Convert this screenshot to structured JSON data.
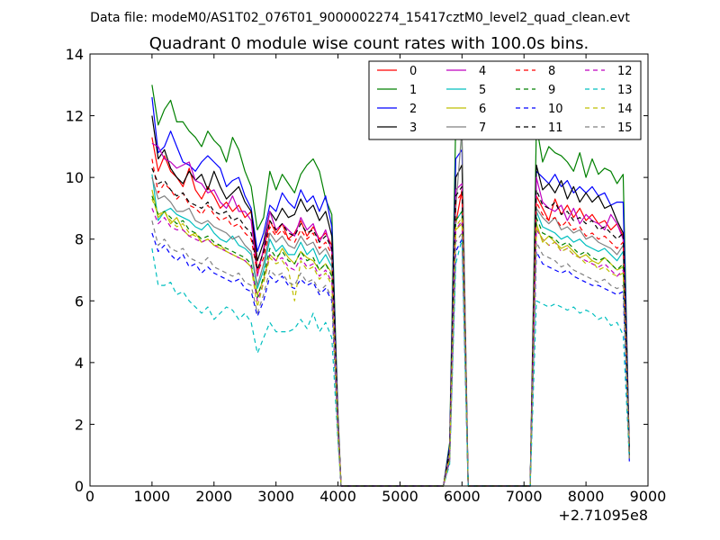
{
  "figure": {
    "suptitle": "Data file: modeM0/AS1T02_076T01_9000002274_15417cztM0_level2_quad_clean.evt"
  },
  "chart_data": {
    "type": "line",
    "title": "Quadrant 0 module wise count rates with 100.0s bins.",
    "xlabel": "",
    "ylabel": "",
    "x_offset_label": "+2.71095e8",
    "xlim": [
      0,
      9000
    ],
    "ylim": [
      0,
      14
    ],
    "xticks": [
      0,
      1000,
      2000,
      3000,
      4000,
      5000,
      6000,
      7000,
      8000,
      9000
    ],
    "yticks": [
      0,
      2,
      4,
      6,
      8,
      10,
      12,
      14
    ],
    "legend_position": "upper-right",
    "legend_columns": 4,
    "x": [
      1000,
      1100,
      1200,
      1300,
      1400,
      1500,
      1600,
      1700,
      1800,
      1900,
      2000,
      2100,
      2200,
      2300,
      2400,
      2500,
      2600,
      2700,
      2800,
      2900,
      3000,
      3100,
      3200,
      3300,
      3400,
      3500,
      3600,
      3700,
      3800,
      3900,
      4000,
      4050,
      4100,
      5700,
      5800,
      5900,
      6000,
      6100,
      6200,
      7100,
      7200,
      7300,
      7400,
      7500,
      7600,
      7700,
      7800,
      7900,
      8000,
      8100,
      8200,
      8300,
      8400,
      8500,
      8600,
      8700
    ],
    "series": [
      {
        "name": "0",
        "color": "#ff0000",
        "dash": "solid",
        "values": [
          11.3,
          10.2,
          10.7,
          10.2,
          10.0,
          9.7,
          10.3,
          9.6,
          9.3,
          9.7,
          9.4,
          9.0,
          9.2,
          8.9,
          9.1,
          8.7,
          8.9,
          7.0,
          7.6,
          8.6,
          8.2,
          8.5,
          8.0,
          8.2,
          8.6,
          8.1,
          8.4,
          8.0,
          8.2,
          7.8,
          2.0,
          0,
          0,
          0,
          1.0,
          8.5,
          9.6,
          0,
          0,
          0,
          9.4,
          9.0,
          8.6,
          9.3,
          8.8,
          9.1,
          8.7,
          9.0,
          8.6,
          8.8,
          8.5,
          8.6,
          8.3,
          8.5,
          8.1,
          1.0
        ]
      },
      {
        "name": "1",
        "color": "#008000",
        "dash": "solid",
        "values": [
          13.0,
          11.7,
          12.2,
          12.5,
          11.8,
          11.8,
          11.5,
          11.3,
          11.0,
          11.5,
          11.2,
          11.0,
          10.5,
          11.3,
          10.9,
          10.2,
          9.7,
          8.3,
          8.7,
          10.2,
          9.6,
          10.1,
          9.8,
          9.5,
          10.1,
          10.4,
          10.6,
          10.2,
          9.3,
          8.8,
          2.3,
          0,
          0,
          0,
          1.4,
          11.8,
          11.2,
          0,
          0,
          0,
          11.7,
          10.5,
          11.0,
          10.8,
          10.7,
          10.5,
          10.2,
          10.8,
          10.0,
          10.6,
          10.1,
          10.3,
          10.2,
          9.8,
          10.1,
          1.1
        ]
      },
      {
        "name": "2",
        "color": "#0000ff",
        "dash": "solid",
        "values": [
          12.6,
          10.8,
          11.0,
          11.5,
          11.0,
          10.5,
          10.4,
          10.2,
          10.5,
          10.7,
          10.5,
          10.3,
          9.7,
          9.9,
          10.0,
          9.4,
          9.0,
          7.6,
          8.2,
          9.1,
          8.9,
          9.5,
          9.2,
          9.0,
          9.6,
          9.2,
          9.4,
          8.9,
          9.4,
          8.4,
          2.1,
          0,
          0,
          0,
          1.3,
          10.6,
          10.9,
          0,
          0,
          0,
          10.2,
          10.0,
          9.8,
          10.1,
          9.7,
          9.9,
          9.5,
          9.7,
          9.5,
          9.7,
          9.4,
          9.5,
          9.1,
          9.2,
          9.2,
          1.2
        ]
      },
      {
        "name": "3",
        "color": "#000000",
        "dash": "solid",
        "values": [
          12.0,
          10.6,
          10.9,
          10.3,
          10.0,
          9.8,
          10.2,
          9.9,
          10.1,
          9.6,
          10.2,
          9.7,
          9.3,
          9.5,
          9.7,
          9.2,
          8.9,
          7.3,
          7.9,
          8.9,
          8.6,
          9.0,
          8.7,
          8.8,
          9.3,
          8.9,
          9.1,
          8.6,
          8.9,
          8.1,
          2.0,
          0,
          0,
          0,
          1.2,
          10.0,
          10.4,
          0,
          0,
          0,
          10.4,
          9.6,
          9.8,
          9.5,
          9.9,
          9.3,
          9.7,
          9.2,
          9.5,
          9.2,
          9.4,
          9.0,
          9.1,
          8.6,
          8.2,
          1.2
        ]
      },
      {
        "name": "4",
        "color": "#bf00bf",
        "dash": "solid",
        "values": [
          11.1,
          11.0,
          10.6,
          10.5,
          10.3,
          10.4,
          10.5,
          9.9,
          9.8,
          9.5,
          9.6,
          9.2,
          9.0,
          9.4,
          8.9,
          8.9,
          8.6,
          6.8,
          7.7,
          8.9,
          8.3,
          8.5,
          8.3,
          8.1,
          8.7,
          8.3,
          8.5,
          7.9,
          8.3,
          7.6,
          2.0,
          0,
          0,
          0,
          1.1,
          9.6,
          9.8,
          0,
          0,
          0,
          10.0,
          9.2,
          9.0,
          8.9,
          9.1,
          8.6,
          9.0,
          8.5,
          8.8,
          8.6,
          8.5,
          8.3,
          8.8,
          8.5,
          8.0,
          1.0
        ]
      },
      {
        "name": "5",
        "color": "#00bfbf",
        "dash": "solid",
        "values": [
          10.1,
          8.6,
          8.9,
          9.0,
          8.8,
          8.7,
          8.6,
          8.4,
          8.3,
          8.5,
          8.2,
          8.0,
          7.9,
          8.1,
          7.8,
          7.7,
          7.5,
          6.4,
          7.0,
          8.0,
          7.6,
          7.8,
          7.5,
          7.5,
          7.9,
          7.5,
          7.7,
          7.2,
          7.5,
          7.1,
          1.9,
          0,
          0,
          0,
          1.0,
          8.6,
          8.9,
          0,
          0,
          0,
          8.9,
          8.4,
          8.3,
          8.2,
          8.0,
          8.1,
          7.9,
          8.0,
          7.8,
          7.7,
          7.6,
          7.7,
          7.5,
          7.3,
          7.6,
          1.0
        ]
      },
      {
        "name": "6",
        "color": "#bfbf00",
        "dash": "solid",
        "values": [
          9.6,
          8.7,
          8.9,
          8.5,
          8.7,
          8.3,
          8.1,
          8.2,
          7.9,
          8.0,
          7.8,
          7.8,
          7.6,
          7.5,
          7.4,
          7.3,
          7.1,
          6.2,
          6.7,
          7.5,
          7.3,
          7.7,
          7.4,
          7.2,
          7.6,
          7.4,
          7.3,
          7.0,
          7.2,
          6.9,
          1.8,
          0,
          0,
          0,
          0.9,
          8.3,
          8.5,
          0,
          0,
          0,
          8.5,
          7.9,
          8.1,
          7.9,
          7.7,
          7.8,
          7.6,
          7.4,
          7.5,
          7.3,
          7.2,
          7.4,
          7.2,
          7.0,
          7.1,
          0.9
        ]
      },
      {
        "name": "7",
        "color": "#808080",
        "dash": "solid",
        "values": [
          10.0,
          9.3,
          9.4,
          9.2,
          8.9,
          8.9,
          9.0,
          8.6,
          8.5,
          8.6,
          8.4,
          8.3,
          8.2,
          8.0,
          8.1,
          7.8,
          7.6,
          6.5,
          7.2,
          8.2,
          7.9,
          8.1,
          7.8,
          7.7,
          8.1,
          7.8,
          7.9,
          7.5,
          7.7,
          7.3,
          1.9,
          0,
          0,
          0,
          1.1,
          9.0,
          11.6,
          0,
          0,
          0,
          9.0,
          8.7,
          8.5,
          8.7,
          8.3,
          8.4,
          8.2,
          8.3,
          8.0,
          8.1,
          7.9,
          7.8,
          7.7,
          7.5,
          7.8,
          1.0
        ]
      },
      {
        "name": "8",
        "color": "#ff0000",
        "dash": "dashed",
        "values": [
          10.6,
          9.5,
          9.8,
          9.6,
          9.3,
          9.5,
          9.1,
          9.0,
          8.8,
          9.1,
          8.8,
          8.6,
          8.7,
          8.4,
          8.5,
          8.2,
          8.0,
          6.9,
          7.4,
          8.4,
          8.1,
          8.3,
          8.0,
          7.9,
          8.3,
          8.0,
          8.2,
          7.7,
          7.9,
          7.5,
          1.9,
          0,
          0,
          0,
          1.0,
          9.2,
          9.5,
          0,
          0,
          0,
          9.2,
          8.8,
          8.6,
          8.7,
          8.4,
          8.6,
          8.3,
          8.4,
          8.1,
          8.2,
          8.0,
          8.1,
          7.9,
          7.7,
          7.9,
          1.0
        ]
      },
      {
        "name": "9",
        "color": "#008000",
        "dash": "dashed",
        "values": [
          9.4,
          8.8,
          8.9,
          8.7,
          8.5,
          8.6,
          8.3,
          8.2,
          8.0,
          8.1,
          7.9,
          7.8,
          7.7,
          7.6,
          7.5,
          7.4,
          7.2,
          6.1,
          6.8,
          7.7,
          7.4,
          7.6,
          7.3,
          7.2,
          7.6,
          7.3,
          7.4,
          7.0,
          7.2,
          6.8,
          1.8,
          0,
          0,
          0,
          0.9,
          8.6,
          8.9,
          0,
          0,
          0,
          8.7,
          8.2,
          8.1,
          8.0,
          7.8,
          7.9,
          7.7,
          7.5,
          7.6,
          7.4,
          7.3,
          7.4,
          7.2,
          7.0,
          7.2,
          0.9
        ]
      },
      {
        "name": "10",
        "color": "#0000ff",
        "dash": "dashed",
        "values": [
          8.2,
          7.6,
          7.8,
          7.5,
          7.3,
          7.5,
          7.1,
          7.2,
          6.9,
          7.1,
          6.9,
          6.8,
          6.7,
          6.6,
          6.7,
          6.4,
          6.3,
          5.5,
          6.0,
          6.8,
          6.6,
          6.8,
          6.5,
          6.4,
          6.7,
          6.5,
          6.6,
          6.2,
          6.4,
          6.0,
          1.6,
          0,
          0,
          0,
          0.8,
          7.6,
          8.0,
          0,
          0,
          0,
          7.6,
          7.2,
          7.1,
          7.0,
          6.9,
          7.0,
          6.8,
          6.7,
          6.6,
          6.5,
          6.5,
          6.4,
          6.3,
          6.2,
          6.3,
          0.8
        ]
      },
      {
        "name": "11",
        "color": "#000000",
        "dash": "dashed",
        "values": [
          10.3,
          9.8,
          9.9,
          9.6,
          9.4,
          9.5,
          9.2,
          9.1,
          9.0,
          9.2,
          8.9,
          8.8,
          8.9,
          8.6,
          8.7,
          8.4,
          8.2,
          7.0,
          7.6,
          8.6,
          8.3,
          8.5,
          8.2,
          8.1,
          8.5,
          8.2,
          8.3,
          7.9,
          8.1,
          7.7,
          2.0,
          0,
          0,
          0,
          1.1,
          9.4,
          9.7,
          0,
          0,
          0,
          9.6,
          9.1,
          9.0,
          9.2,
          8.8,
          8.9,
          8.6,
          8.7,
          8.5,
          8.6,
          8.3,
          8.4,
          8.2,
          8.0,
          8.2,
          1.0
        ]
      },
      {
        "name": "12",
        "color": "#bf00bf",
        "dash": "dashed",
        "values": [
          9.0,
          8.5,
          8.7,
          8.4,
          8.3,
          8.3,
          8.1,
          8.0,
          7.9,
          8.0,
          7.8,
          7.7,
          7.6,
          7.5,
          7.4,
          7.3,
          7.1,
          6.0,
          6.6,
          7.5,
          7.3,
          7.4,
          7.1,
          7.0,
          7.4,
          7.1,
          7.2,
          6.8,
          7.0,
          6.6,
          1.8,
          0,
          0,
          0,
          0.9,
          8.3,
          8.6,
          0,
          0,
          0,
          8.3,
          8.0,
          7.8,
          7.9,
          7.6,
          7.7,
          7.5,
          7.4,
          7.3,
          7.2,
          7.1,
          7.2,
          7.0,
          6.8,
          7.0,
          0.9
        ]
      },
      {
        "name": "13",
        "color": "#00bfbf",
        "dash": "dashed",
        "values": [
          7.7,
          6.5,
          6.5,
          6.6,
          6.2,
          6.3,
          6.0,
          5.8,
          5.6,
          5.8,
          5.4,
          5.6,
          5.8,
          5.7,
          5.4,
          5.6,
          5.3,
          4.3,
          4.8,
          5.3,
          5.0,
          5.0,
          5.0,
          5.1,
          5.4,
          5.1,
          5.6,
          5.0,
          5.3,
          4.8,
          1.4,
          0,
          0,
          0,
          0.7,
          7.2,
          8.0,
          0,
          0,
          0,
          6.0,
          5.9,
          5.8,
          5.9,
          5.8,
          5.7,
          5.8,
          5.6,
          5.7,
          5.6,
          5.4,
          5.5,
          5.2,
          5.3,
          4.9,
          0.9
        ]
      },
      {
        "name": "14",
        "color": "#bfbf00",
        "dash": "dashed",
        "values": [
          9.3,
          8.8,
          8.9,
          8.6,
          8.4,
          8.5,
          8.2,
          8.1,
          7.9,
          8.0,
          7.8,
          7.7,
          7.6,
          7.5,
          7.4,
          7.3,
          7.1,
          5.8,
          6.6,
          7.4,
          7.2,
          7.3,
          7.0,
          6.0,
          7.3,
          7.0,
          7.1,
          6.7,
          6.9,
          6.5,
          1.7,
          0,
          0,
          0,
          0.9,
          8.4,
          8.7,
          0,
          0,
          0,
          8.4,
          8.0,
          7.8,
          7.9,
          7.6,
          7.7,
          7.5,
          7.4,
          7.2,
          7.3,
          7.0,
          7.1,
          6.9,
          6.8,
          6.9,
          0.9
        ]
      },
      {
        "name": "15",
        "color": "#808080",
        "dash": "dashed",
        "values": [
          8.6,
          7.8,
          8.0,
          7.7,
          7.6,
          7.7,
          7.4,
          7.3,
          7.2,
          7.4,
          7.1,
          7.0,
          6.9,
          6.8,
          6.9,
          6.6,
          6.5,
          5.6,
          6.2,
          7.0,
          6.8,
          6.9,
          6.6,
          6.5,
          6.9,
          6.6,
          6.7,
          6.3,
          6.5,
          6.1,
          1.6,
          0,
          0,
          0,
          0.8,
          7.9,
          8.2,
          0,
          0,
          0,
          7.9,
          7.5,
          7.4,
          7.3,
          7.1,
          7.2,
          7.0,
          6.9,
          6.8,
          6.7,
          6.6,
          6.7,
          6.5,
          6.4,
          6.5,
          0.8
        ]
      }
    ]
  }
}
